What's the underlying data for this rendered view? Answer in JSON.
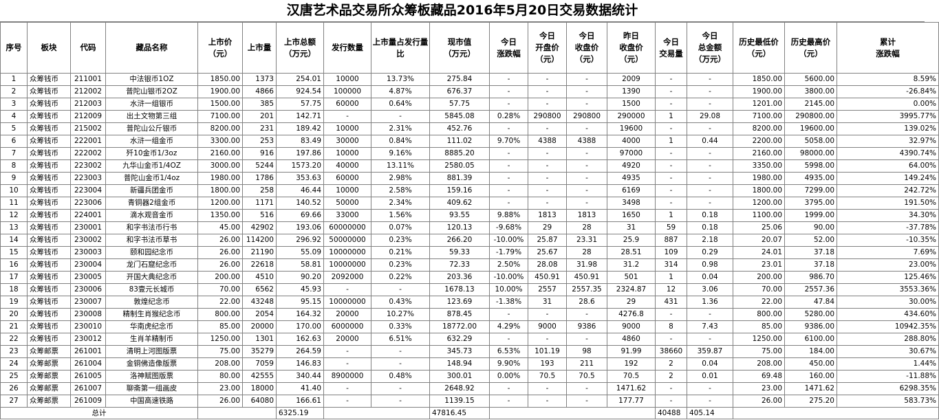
{
  "title": "汉唐艺术品交易所众筹板藏品2016年5月20日交易数据统计",
  "headers": [
    "序号",
    "板块",
    "代码",
    "藏品名称",
    "上市价\n（元）",
    "上市量",
    "上市总额\n（万元）",
    "发行数量",
    "上市量占发行量\n比",
    "现市值\n（万元）",
    "今日\n涨跌幅",
    "今日\n开盘价\n（元）",
    "今日\n收盘价\n（元）",
    "昨日\n收盘价\n（元）",
    "今日\n交易量",
    "今日\n总金额\n（万元）",
    "历史最低价\n（元）",
    "历史最高价\n（元）",
    "累计\n涨跌幅"
  ],
  "rows": [
    [
      "1",
      "众筹钱币",
      "211001",
      "中法银币1OZ",
      "1850.00",
      "1373",
      "254.01",
      "10000",
      "13.73%",
      "275.84",
      "-",
      "-",
      "-",
      "2009",
      "-",
      "-",
      "1850.00",
      "5600.00",
      "8.59%"
    ],
    [
      "2",
      "众筹钱币",
      "212002",
      "普陀山银币2OZ",
      "1900.00",
      "4866",
      "924.54",
      "100000",
      "4.87%",
      "676.37",
      "-",
      "-",
      "-",
      "1390",
      "-",
      "-",
      "1900.00",
      "3800.00",
      "-26.84%"
    ],
    [
      "3",
      "众筹钱币",
      "212003",
      "水浒一组银币",
      "1500.00",
      "385",
      "57.75",
      "60000",
      "0.64%",
      "57.75",
      "-",
      "-",
      "-",
      "1500",
      "-",
      "-",
      "1201.00",
      "2145.00",
      "0.00%"
    ],
    [
      "4",
      "众筹钱币",
      "212009",
      "出土文物第三组",
      "7100.00",
      "201",
      "142.71",
      "-",
      "-",
      "5845.08",
      "0.28%",
      "290800",
      "290800",
      "290000",
      "1",
      "29.08",
      "7100.00",
      "290800.00",
      "3995.77%"
    ],
    [
      "5",
      "众筹钱币",
      "215002",
      "普陀山公斤银币",
      "8200.00",
      "231",
      "189.42",
      "10000",
      "2.31%",
      "452.76",
      "-",
      "-",
      "-",
      "19600",
      "-",
      "-",
      "8200.00",
      "19600.00",
      "139.02%"
    ],
    [
      "6",
      "众筹钱币",
      "222001",
      "水浒一组金币",
      "3300.00",
      "253",
      "83.49",
      "30000",
      "0.84%",
      "111.02",
      "9.70%",
      "4388",
      "4388",
      "4000",
      "1",
      "0.44",
      "2200.00",
      "5058.00",
      "32.97%"
    ],
    [
      "7",
      "众筹钱币",
      "222002",
      "歼10金币1/3oz",
      "2160.00",
      "916",
      "197.86",
      "10000",
      "9.16%",
      "8885.20",
      "-",
      "-",
      "-",
      "97000",
      "-",
      "-",
      "2160.00",
      "98000.00",
      "4390.74%"
    ],
    [
      "8",
      "众筹钱币",
      "223002",
      "九华山金币1/4OZ",
      "3000.00",
      "5244",
      "1573.20",
      "40000",
      "13.11%",
      "2580.05",
      "-",
      "-",
      "-",
      "4920",
      "-",
      "-",
      "3350.00",
      "5998.00",
      "64.00%"
    ],
    [
      "9",
      "众筹钱币",
      "223003",
      "普陀山金币1/4oz",
      "1980.00",
      "1786",
      "353.63",
      "60000",
      "2.98%",
      "881.39",
      "-",
      "-",
      "-",
      "4935",
      "-",
      "-",
      "1980.00",
      "4935.00",
      "149.24%"
    ],
    [
      "10",
      "众筹钱币",
      "223004",
      "新疆兵团金币",
      "1800.00",
      "258",
      "46.44",
      "10000",
      "2.58%",
      "159.16",
      "-",
      "-",
      "-",
      "6169",
      "-",
      "-",
      "1800.00",
      "7299.00",
      "242.72%"
    ],
    [
      "11",
      "众筹钱币",
      "223006",
      "青铜器2组金币",
      "1200.00",
      "1171",
      "140.52",
      "50000",
      "2.34%",
      "409.62",
      "-",
      "-",
      "-",
      "3498",
      "-",
      "-",
      "1200.00",
      "3795.00",
      "191.50%"
    ],
    [
      "12",
      "众筹钱币",
      "224001",
      "滴水观音金币",
      "1350.00",
      "516",
      "69.66",
      "33000",
      "1.56%",
      "93.55",
      "9.88%",
      "1813",
      "1813",
      "1650",
      "1",
      "0.18",
      "1100.00",
      "1999.00",
      "34.30%"
    ],
    [
      "13",
      "众筹钱币",
      "230001",
      "和字书法币行书",
      "45.00",
      "42902",
      "193.06",
      "60000000",
      "0.07%",
      "120.13",
      "-9.68%",
      "29",
      "28",
      "31",
      "59",
      "0.18",
      "25.06",
      "90.00",
      "-37.78%"
    ],
    [
      "14",
      "众筹钱币",
      "230002",
      "和字书法币草书",
      "26.00",
      "114200",
      "296.92",
      "50000000",
      "0.23%",
      "266.20",
      "-10.00%",
      "25.87",
      "23.31",
      "25.9",
      "887",
      "2.18",
      "20.07",
      "52.00",
      "-10.35%"
    ],
    [
      "15",
      "众筹钱币",
      "230003",
      "颐和园纪念币",
      "26.00",
      "21190",
      "55.09",
      "10000000",
      "0.21%",
      "59.33",
      "-1.79%",
      "25.67",
      "28",
      "28.51",
      "109",
      "0.29",
      "24.01",
      "37.18",
      "7.69%"
    ],
    [
      "16",
      "众筹钱币",
      "230004",
      "龙门石窟纪念币",
      "26.00",
      "22618",
      "58.81",
      "10000000",
      "0.23%",
      "72.33",
      "2.50%",
      "28.08",
      "31.98",
      "31.2",
      "314",
      "0.98",
      "23.01",
      "37.18",
      "23.00%"
    ],
    [
      "17",
      "众筹钱币",
      "230005",
      "开国大典纪念币",
      "200.00",
      "4510",
      "90.20",
      "2092000",
      "0.22%",
      "203.36",
      "-10.00%",
      "450.91",
      "450.91",
      "501",
      "1",
      "0.04",
      "200.00",
      "986.70",
      "125.46%"
    ],
    [
      "18",
      "众筹钱币",
      "230006",
      "83壹元长城币",
      "70.00",
      "6562",
      "45.93",
      "-",
      "-",
      "1678.13",
      "10.00%",
      "2557",
      "2557.35",
      "2324.87",
      "12",
      "3.06",
      "70.00",
      "2557.36",
      "3553.36%"
    ],
    [
      "19",
      "众筹钱币",
      "230007",
      "敦煌纪念币",
      "22.00",
      "43248",
      "95.15",
      "10000000",
      "0.43%",
      "123.69",
      "-1.38%",
      "31",
      "28.6",
      "29",
      "431",
      "1.36",
      "22.00",
      "47.84",
      "30.00%"
    ],
    [
      "20",
      "众筹钱币",
      "230008",
      "精制生肖猴纪念币",
      "800.00",
      "2054",
      "164.32",
      "20000",
      "10.27%",
      "878.45",
      "-",
      "-",
      "-",
      "4276.8",
      "-",
      "-",
      "800.00",
      "5280.00",
      "434.60%"
    ],
    [
      "21",
      "众筹钱币",
      "230010",
      "华南虎纪念币",
      "85.00",
      "20000",
      "170.00",
      "6000000",
      "0.33%",
      "18772.00",
      "4.29%",
      "9000",
      "9386",
      "9000",
      "8",
      "7.43",
      "85.00",
      "9386.00",
      "10942.35%"
    ],
    [
      "22",
      "众筹钱币",
      "230012",
      "生肖羊精制币",
      "1250.00",
      "1301",
      "162.63",
      "20000",
      "6.51%",
      "632.29",
      "-",
      "-",
      "-",
      "4860",
      "-",
      "-",
      "1250.00",
      "6100.00",
      "288.80%"
    ],
    [
      "23",
      "众筹邮票",
      "261001",
      "清明上河图版票",
      "75.00",
      "35279",
      "264.59",
      "-",
      "-",
      "345.73",
      "6.53%",
      "101.19",
      "98",
      "91.99",
      "38660",
      "359.87",
      "75.00",
      "184.00",
      "30.67%"
    ],
    [
      "24",
      "众筹邮票",
      "261004",
      "金铜佛造像版票",
      "208.00",
      "7059",
      "146.83",
      "-",
      "-",
      "148.94",
      "9.90%",
      "193",
      "211",
      "192",
      "2",
      "0.04",
      "208.00",
      "450.00",
      "1.44%"
    ],
    [
      "25",
      "众筹邮票",
      "261005",
      "洛神赋图版票",
      "80.00",
      "42555",
      "340.44",
      "8900000",
      "0.48%",
      "300.01",
      "0.00%",
      "70.5",
      "70.5",
      "70.5",
      "2",
      "0.01",
      "69.48",
      "160.00",
      "-11.88%"
    ],
    [
      "26",
      "众筹邮票",
      "261007",
      "聊斋第一组画皮",
      "23.00",
      "18000",
      "41.40",
      "-",
      "-",
      "2648.92",
      "-",
      "-",
      "-",
      "1471.62",
      "-",
      "-",
      "23.00",
      "1471.62",
      "6298.35%"
    ],
    [
      "27",
      "众筹邮票",
      "261009",
      "中国高速铁路",
      "26.00",
      "64080",
      "166.61",
      "-",
      "-",
      "1139.15",
      "-",
      "-",
      "-",
      "177.77",
      "-",
      "-",
      "26.00",
      "275.20",
      "583.73%"
    ]
  ],
  "total": {
    "label": "总计",
    "listing_total": "6325.19",
    "market_value": "47816.45",
    "volume": "40488",
    "amount": "405.14"
  }
}
